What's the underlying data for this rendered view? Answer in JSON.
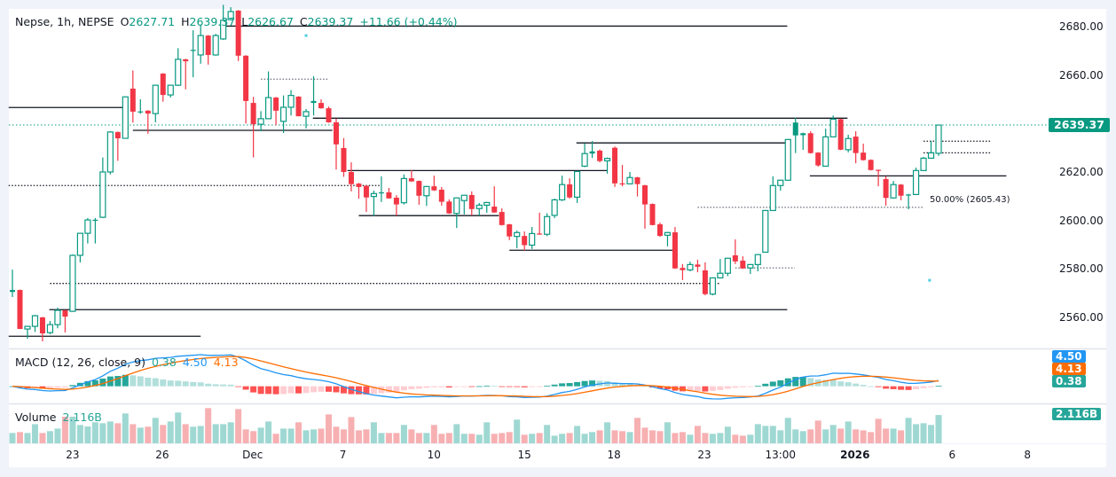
{
  "header": {
    "symbol": "Nepse, 1h, NEPSE",
    "o_label": "O",
    "o_value": "2627.71",
    "h_label": "H",
    "h_value": "2639.37",
    "l_label": "L",
    "l_value": "2626.67",
    "c_label": "C",
    "c_value": "2639.37",
    "change": "+11.66 (+0.44%)"
  },
  "macd_legend": {
    "title": "MACD (12, 26, close, 9)",
    "histogram": "0.38",
    "macd": "4.50",
    "signal": "4.13"
  },
  "volume_legend": {
    "title": "Volume",
    "value": "2.116B"
  },
  "price_tag": "2639.37",
  "macd_tags": {
    "macd": "4.50",
    "signal": "4.13",
    "histogram": "0.38"
  },
  "volume_tag": "2.116B",
  "fib_label": "50.00% (2605.43)",
  "colors": {
    "up": "#089981",
    "down": "#f23645",
    "macd": "#2196f3",
    "signal": "#ff6d00",
    "hist_up_strong": "#26a69a",
    "hist_up_weak": "#b2dfdb",
    "hist_down_strong": "#ff5252",
    "hist_down_weak": "#ffcdd2",
    "vol_up": "#9fd8d2",
    "vol_down": "#f7b0b2"
  },
  "chart_data": {
    "type": "candlestick",
    "title": "Nepse, 1h, NEPSE",
    "y_axis": {
      "ticks": [
        "2680.00",
        "2660.00",
        "2620.00",
        "2600.00",
        "2580.00",
        "2560.00"
      ],
      "tick_values": [
        2680,
        2660,
        2620,
        2600,
        2580,
        2560
      ]
    },
    "x_axis": {
      "labels": [
        {
          "text": "23",
          "bar": 8
        },
        {
          "text": "26",
          "bar": 19.9
        },
        {
          "text": "Dec",
          "bar": 31.9
        },
        {
          "text": "7",
          "bar": 43.9
        },
        {
          "text": "10",
          "bar": 56
        },
        {
          "text": "15",
          "bar": 68
        },
        {
          "text": "18",
          "bar": 79.9
        },
        {
          "text": "23",
          "bar": 91.9
        },
        {
          "text": "13:00",
          "bar": 102
        },
        {
          "text": "2026",
          "bar": 111.9,
          "bold": true
        },
        {
          "text": "6",
          "bar": 124.8
        },
        {
          "text": "8",
          "bar": 134.8
        }
      ]
    },
    "ohlc": [
      [
        2570.5,
        2579.7,
        2568.4,
        2571.3
      ],
      [
        2571.3,
        2571.5,
        2555.2,
        2555.2
      ],
      [
        2555.2,
        2556.5,
        2551.2,
        2556.3
      ],
      [
        2556.3,
        2561.0,
        2554.0,
        2560.7
      ],
      [
        2560.0,
        2560.2,
        2550.1,
        2553.4
      ],
      [
        2553.7,
        2558.5,
        2553.0,
        2557.0
      ],
      [
        2557.0,
        2564.0,
        2555.5,
        2562.9
      ],
      [
        2562.9,
        2563.1,
        2553.8,
        2560.3
      ],
      [
        2562.5,
        2586.0,
        2562.3,
        2585.6
      ],
      [
        2585.6,
        2594.9,
        2582.7,
        2594.7
      ],
      [
        2594.7,
        2601.0,
        2590.5,
        2600.2
      ],
      [
        2600.0,
        2601.0,
        2590.5,
        2600.3
      ],
      [
        2601.3,
        2626.0,
        2601.0,
        2620.0
      ],
      [
        2620.0,
        2636.8,
        2619.0,
        2636.5
      ],
      [
        2636.5,
        2636.7,
        2624.6,
        2633.9
      ],
      [
        2633.9,
        2651.2,
        2633.7,
        2651.0
      ],
      [
        2654.4,
        2661.9,
        2640.4,
        2644.9
      ],
      [
        2644.6,
        2650.0,
        2644.0,
        2645.0
      ],
      [
        2645.3,
        2645.5,
        2635.8,
        2644.1
      ],
      [
        2644.1,
        2656.0,
        2640.5,
        2655.8
      ],
      [
        2660.6,
        2660.8,
        2649.0,
        2651.8
      ],
      [
        2651.8,
        2656.0,
        2650.7,
        2655.8
      ],
      [
        2655.8,
        2671.1,
        2655.5,
        2666.5
      ],
      [
        2666.5,
        2666.7,
        2654.1,
        2665.7
      ],
      [
        2670.0,
        2678.5,
        2659.1,
        2670.4
      ],
      [
        2668.3,
        2680.9,
        2664.7,
        2676.3
      ],
      [
        2676.3,
        2676.5,
        2664.3,
        2668.3
      ],
      [
        2668.3,
        2677.0,
        2668.0,
        2676.3
      ],
      [
        2674.9,
        2689.0,
        2674.5,
        2682.6
      ],
      [
        2682.9,
        2688.0,
        2682.5,
        2686.2
      ],
      [
        2686.6,
        2686.8,
        2665.8,
        2668.0
      ],
      [
        2668.0,
        2668.2,
        2640.0,
        2649.3
      ],
      [
        2648.5,
        2651.0,
        2626.0,
        2639.7
      ],
      [
        2639.7,
        2645.1,
        2636.8,
        2642.0
      ],
      [
        2642.0,
        2661.5,
        2641.8,
        2650.7
      ],
      [
        2650.7,
        2651.0,
        2639.3,
        2645.3
      ],
      [
        2640.9,
        2651.6,
        2636.1,
        2646.7
      ],
      [
        2646.7,
        2653.8,
        2643.3,
        2651.6
      ],
      [
        2651.1,
        2651.3,
        2643.0,
        2643.0
      ],
      [
        2643.0,
        2646.0,
        2638.0,
        2644.9
      ],
      [
        2648.5,
        2659.5,
        2643.3,
        2649.3
      ],
      [
        2648.5,
        2650.0,
        2646.1,
        2646.3
      ],
      [
        2646.3,
        2647.0,
        2640.3,
        2640.5
      ],
      [
        2640.5,
        2642.0,
        2621.0,
        2631.4
      ],
      [
        2629.9,
        2634.0,
        2618.0,
        2620.0
      ],
      [
        2620.0,
        2624.0,
        2612.0,
        2615.0
      ],
      [
        2615.2,
        2615.5,
        2609.0,
        2613.8
      ],
      [
        2614.3,
        2614.5,
        2603.5,
        2609.5
      ],
      [
        2609.9,
        2612.3,
        2601.8,
        2611.1
      ],
      [
        2611.2,
        2618.2,
        2607.6,
        2611.6
      ],
      [
        2611.6,
        2613.4,
        2609.0,
        2609.1
      ],
      [
        2609.4,
        2610.4,
        2602.0,
        2606.6
      ],
      [
        2607.3,
        2619.0,
        2606.6,
        2617.3
      ],
      [
        2617.4,
        2620.8,
        2616.0,
        2616.1
      ],
      [
        2616.3,
        2616.5,
        2606.5,
        2610.2
      ],
      [
        2610.2,
        2614.2,
        2606.0,
        2614.0
      ],
      [
        2614.1,
        2618.5,
        2612.2,
        2612.4
      ],
      [
        2612.7,
        2613.8,
        2606.1,
        2607.7
      ],
      [
        2607.8,
        2608.7,
        2602.7,
        2602.9
      ],
      [
        2602.9,
        2609.5,
        2596.9,
        2609.3
      ],
      [
        2608.2,
        2610.6,
        2602.5,
        2610.4
      ],
      [
        2610.5,
        2612.0,
        2602.0,
        2604.7
      ],
      [
        2604.9,
        2607.2,
        2602.0,
        2606.3
      ],
      [
        2606.3,
        2607.6,
        2603.2,
        2607.4
      ],
      [
        2605.7,
        2614.1,
        2603.1,
        2603.3
      ],
      [
        2603.5,
        2605.0,
        2597.9,
        2598.1
      ],
      [
        2598.4,
        2598.6,
        2591.9,
        2593.4
      ],
      [
        2593.4,
        2595.8,
        2588.5,
        2595.0
      ],
      [
        2593.6,
        2595.5,
        2587.5,
        2589.8
      ],
      [
        2589.8,
        2597.3,
        2588.2,
        2594.6
      ],
      [
        2594.6,
        2603.2,
        2594.1,
        2594.2
      ],
      [
        2594.3,
        2603.0,
        2593.5,
        2601.6
      ],
      [
        2602.1,
        2609.0,
        2601.0,
        2608.5
      ],
      [
        2608.5,
        2618.5,
        2608.0,
        2614.8
      ],
      [
        2614.9,
        2617.4,
        2609.0,
        2609.5
      ],
      [
        2609.6,
        2620.4,
        2607.2,
        2620.2
      ],
      [
        2622.4,
        2631.8,
        2622.0,
        2627.6
      ],
      [
        2627.6,
        2632.8,
        2625.8,
        2628.5
      ],
      [
        2628.8,
        2629.3,
        2624.0,
        2624.5
      ],
      [
        2624.6,
        2626.0,
        2619.3,
        2625.6
      ],
      [
        2630.0,
        2630.5,
        2613.8,
        2615.3
      ],
      [
        2615.3,
        2622.9,
        2614.1,
        2615.0
      ],
      [
        2615.1,
        2620.0,
        2614.9,
        2617.7
      ],
      [
        2617.8,
        2618.0,
        2609.9,
        2615.0
      ],
      [
        2614.5,
        2614.7,
        2596.6,
        2606.6
      ],
      [
        2606.8,
        2607.0,
        2598.0,
        2598.1
      ],
      [
        2598.4,
        2599.1,
        2593.3,
        2593.6
      ],
      [
        2593.9,
        2595.3,
        2589.3,
        2595.0
      ],
      [
        2595.1,
        2597.3,
        2580.0,
        2580.2
      ],
      [
        2580.4,
        2582.0,
        2575.4,
        2579.5
      ],
      [
        2579.6,
        2583.0,
        2579.0,
        2581.8
      ],
      [
        2581.8,
        2583.8,
        2578.6,
        2580.9
      ],
      [
        2579.4,
        2582.7,
        2569.1,
        2569.6
      ],
      [
        2569.6,
        2576.5,
        2569.1,
        2576.3
      ],
      [
        2576.3,
        2584.1,
        2576.0,
        2578.2
      ],
      [
        2578.2,
        2584.6,
        2577.0,
        2584.4
      ],
      [
        2585.6,
        2592.2,
        2582.0,
        2583.1
      ],
      [
        2583.4,
        2585.2,
        2580.0,
        2580.2
      ],
      [
        2580.4,
        2582.0,
        2577.9,
        2581.8
      ],
      [
        2581.8,
        2586.1,
        2579.0,
        2585.9
      ],
      [
        2586.9,
        2604.3,
        2586.7,
        2604.1
      ],
      [
        2604.1,
        2618.2,
        2604.0,
        2614.4
      ],
      [
        2614.4,
        2616.8,
        2612.3,
        2616.6
      ],
      [
        2616.6,
        2633.6,
        2616.4,
        2633.4
      ],
      [
        2635.1,
        2642.3,
        2627.8,
        2640.4
      ],
      [
        2635.2,
        2636.2,
        2629.1,
        2636.0
      ],
      [
        2636.0,
        2636.8,
        2627.6,
        2627.8
      ],
      [
        2628.0,
        2628.2,
        2622.2,
        2622.7
      ],
      [
        2622.4,
        2637.9,
        2622.2,
        2634.5
      ],
      [
        2634.5,
        2643.3,
        2634.3,
        2641.8
      ],
      [
        2641.8,
        2642.0,
        2629.0,
        2629.2
      ],
      [
        2629.2,
        2635.4,
        2628.1,
        2633.8
      ],
      [
        2634.6,
        2636.8,
        2623.6,
        2627.8
      ],
      [
        2628.0,
        2631.7,
        2624.7,
        2624.9
      ],
      [
        2625.0,
        2625.2,
        2620.6,
        2620.8
      ],
      [
        2620.9,
        2621.0,
        2614.1,
        2620.8
      ],
      [
        2617.1,
        2618.2,
        2606.1,
        2609.3
      ],
      [
        2609.3,
        2616.3,
        2609.0,
        2614.8
      ],
      [
        2614.8,
        2615.0,
        2608.3,
        2610.2
      ],
      [
        2610.4,
        2611.0,
        2604.6,
        2610.7
      ],
      [
        2610.7,
        2621.8,
        2610.5,
        2620.6
      ],
      [
        2620.6,
        2626.2,
        2620.4,
        2625.7
      ],
      [
        2625.7,
        2632.8,
        2625.5,
        2627.9
      ],
      [
        2627.71,
        2639.37,
        2626.67,
        2639.37
      ]
    ],
    "filled_up_bars": [
      104
    ],
    "volume_billions": [
      0.77,
      0.84,
      0.77,
      1.43,
      0.77,
      0.91,
      1.1,
      1.99,
      1.99,
      1.37,
      1.26,
      1.57,
      1.5,
      1.63,
      1.5,
      2.23,
      1.43,
      1.17,
      1.24,
      1.9,
      1.37,
      1.63,
      2.3,
      1.43,
      1.24,
      1.3,
      2.63,
      1.43,
      1.43,
      1.57,
      2.56,
      1.04,
      0.91,
      1.17,
      1.63,
      0.71,
      1.1,
      1.1,
      1.57,
      0.97,
      1.04,
      1.1,
      2.16,
      1.24,
      1.04,
      1.96,
      0.97,
      1.04,
      1.57,
      0.77,
      0.77,
      0.77,
      1.37,
      1.04,
      0.77,
      0.77,
      1.37,
      0.71,
      0.77,
      1.43,
      0.71,
      0.71,
      0.64,
      1.57,
      0.71,
      0.77,
      0.84,
      1.77,
      0.64,
      0.71,
      0.77,
      1.37,
      0.57,
      0.71,
      0.77,
      1.3,
      0.71,
      0.84,
      0.97,
      1.57,
      0.97,
      0.91,
      0.84,
      1.9,
      1.17,
      0.97,
      0.91,
      1.57,
      0.77,
      0.84,
      0.64,
      1.3,
      0.77,
      0.71,
      0.77,
      1.24,
      0.64,
      0.57,
      0.64,
      1.43,
      1.3,
      1.3,
      0.97,
      1.9,
      1.04,
      0.91,
      1.04,
      1.7,
      1.04,
      1.37,
      1.1,
      1.63,
      1.04,
      0.97,
      0.84,
      1.83,
      1.1,
      1.1,
      0.97,
      1.9,
      1.43,
      1.5,
      1.37,
      2.116
    ],
    "levels": [
      {
        "price": 2680.2,
        "from_bar": 28.2,
        "to_bar": 102.9,
        "style": "solid"
      },
      {
        "price": 2646.6,
        "from_bar": -0.5,
        "to_bar": 14.8,
        "style": "solid"
      },
      {
        "price": 2637.2,
        "from_bar": 16,
        "to_bar": 42.5,
        "style": "solid"
      },
      {
        "price": 2642.2,
        "from_bar": 39.9,
        "to_bar": 110.9,
        "style": "solid"
      },
      {
        "price": 2620.6,
        "from_bar": 44.5,
        "to_bar": 79,
        "style": "solid"
      },
      {
        "price": 2602.0,
        "from_bar": 46,
        "to_bar": 64.6,
        "style": "solid"
      },
      {
        "price": 2587.7,
        "from_bar": 66,
        "to_bar": 87.7,
        "style": "solid"
      },
      {
        "price": 2632.0,
        "from_bar": 74.9,
        "to_bar": 103,
        "style": "solid"
      },
      {
        "price": 2618.4,
        "from_bar": 105.9,
        "to_bar": 132,
        "style": "solid"
      },
      {
        "price": 2563.2,
        "from_bar": 4.9,
        "to_bar": 102.9,
        "style": "solid"
      },
      {
        "price": 2552.2,
        "from_bar": -0.5,
        "to_bar": 25,
        "style": "solid"
      },
      {
        "price": 2614.4,
        "from_bar": -0.5,
        "to_bar": 49,
        "style": "dotted"
      },
      {
        "price": 2574.0,
        "from_bar": 5,
        "to_bar": 93.9,
        "style": "dotted"
      },
      {
        "price": 2658.3,
        "from_bar": 33,
        "to_bar": 41.9,
        "style": "dotted-gray"
      },
      {
        "price": 2605.43,
        "from_bar": 91,
        "to_bar": 120.9,
        "style": "dotted-gray"
      },
      {
        "price": 2580.4,
        "from_bar": 96,
        "to_bar": 103.9,
        "style": "dotted-gray"
      },
      {
        "price": 2632.7,
        "from_bar": 121,
        "to_bar": 130,
        "style": "dotted"
      },
      {
        "price": 2627.9,
        "from_bar": 121,
        "to_bar": 130,
        "style": "dotted"
      }
    ],
    "markers": [
      {
        "bar": 39,
        "price": 2676.3
      },
      {
        "bar": 121.8,
        "price": 2575.3
      }
    ],
    "last_price": 2639.37,
    "macd_params": {
      "fast": 12,
      "slow": 26,
      "signal": 9
    }
  }
}
